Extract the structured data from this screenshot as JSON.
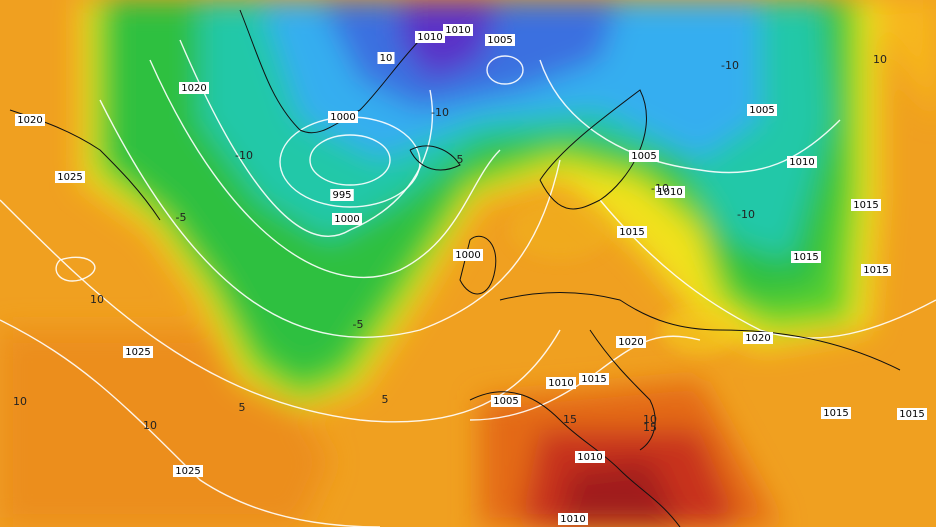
{
  "pressure_labels": [
    "1010",
    "1010",
    "1005",
    "10",
    "1020",
    "1000",
    "1020",
    "1005",
    "1005",
    "1010",
    "1010",
    "995",
    "1000",
    "1025",
    "1015",
    "1015",
    "1000",
    "1015",
    "1015",
    "1020",
    "1020",
    "1025",
    "1010",
    "1015",
    "1005",
    "1015",
    "1015",
    "1010",
    "1025",
    "1010"
  ],
  "temperature_labels": [
    "-10",
    "-10",
    "-10",
    "-10",
    "-10",
    "-5",
    "-5",
    "5",
    "5",
    "10",
    "10",
    "10",
    "10",
    "15",
    "15",
    "10",
    "5"
  ]
}
